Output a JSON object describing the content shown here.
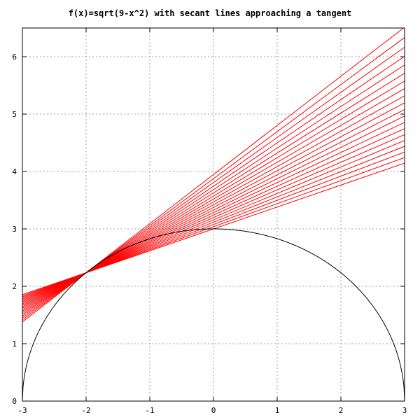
{
  "chart_data": {
    "type": "line",
    "title": "f(x)=sqrt(9-x^2) with secant lines approaching a tangent",
    "xlabel": "",
    "ylabel": "",
    "xlim": [
      -3,
      3
    ],
    "ylim": [
      0,
      6.5
    ],
    "grid": true,
    "x_ticks": [
      -3,
      -2,
      -1,
      0,
      1,
      2,
      3
    ],
    "y_ticks": [
      0,
      1,
      2,
      3,
      4,
      5,
      6
    ],
    "x_tick_labels": [
      "-3",
      "-2",
      "-1",
      "0",
      "1",
      "2",
      "3"
    ],
    "y_tick_labels": [
      "0",
      "1",
      "2",
      "3",
      "4",
      "5",
      "6"
    ],
    "function": {
      "expression": "sqrt(9-x^2)",
      "domain": [
        -3,
        3
      ],
      "color": "#000000"
    },
    "secant_lines": {
      "color": "#ff0000",
      "anchor_point": [
        -2,
        2.236
      ],
      "second_point_x": [
        0,
        -0.1,
        -0.2,
        -0.3,
        -0.4,
        -0.5,
        -0.6,
        -0.7,
        -0.8,
        -0.9,
        -1.0,
        -1.1,
        -1.2,
        -1.3,
        -1.4,
        -1.5,
        -1.6,
        -1.7,
        -1.8,
        -1.9
      ],
      "x_range": [
        -3,
        3
      ],
      "tangent_slope": 0.894
    }
  }
}
